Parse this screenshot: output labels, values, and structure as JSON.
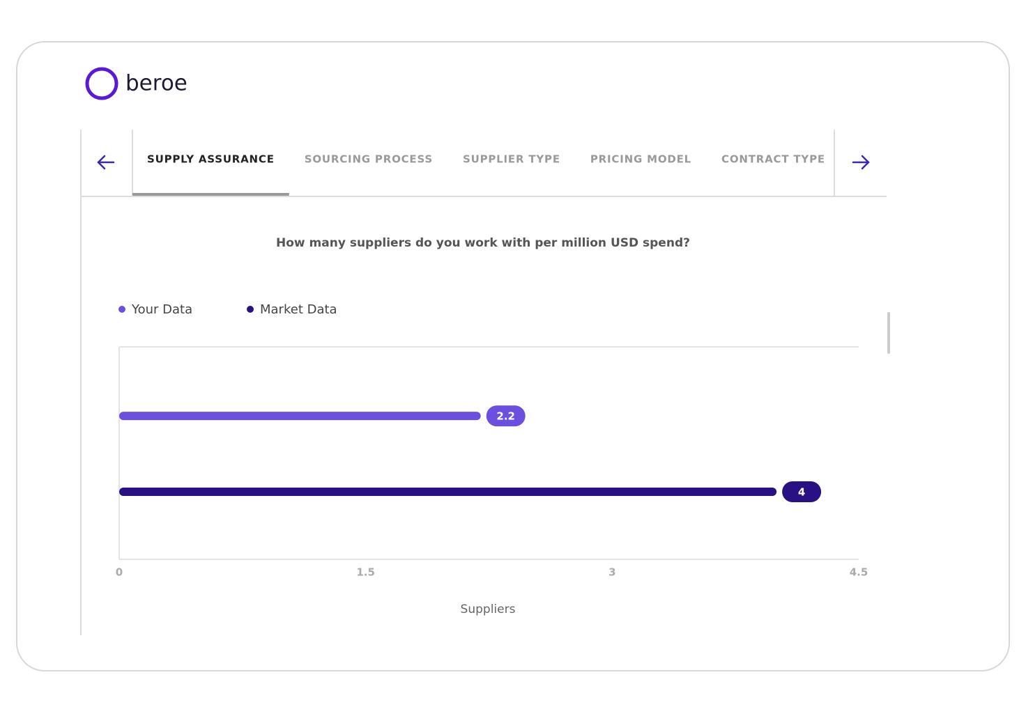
{
  "header": {
    "logo": "beroe"
  },
  "tabs": [
    "SUPPLY ASSURANCE",
    "SOURCING PROCESS",
    "SUPPLIER TYPE",
    "PRICING MODEL",
    "CONTRACT TYPE"
  ],
  "active_tab": 0,
  "chart_data": {
    "type": "bar",
    "orientation": "horizontal",
    "title": "How many suppliers do you work with per million USD spend?",
    "categories": [
      null
    ],
    "series": [
      {
        "name": "Your Data",
        "color": "#6d4fe0",
        "values": [
          2.2
        ]
      },
      {
        "name": "Market Data",
        "color": "#2a1183",
        "values": [
          4
        ]
      }
    ],
    "xlim": [
      0,
      4.5
    ],
    "xticks": [
      0,
      1.5,
      3,
      4.5
    ],
    "xlabel": "Suppliers"
  }
}
